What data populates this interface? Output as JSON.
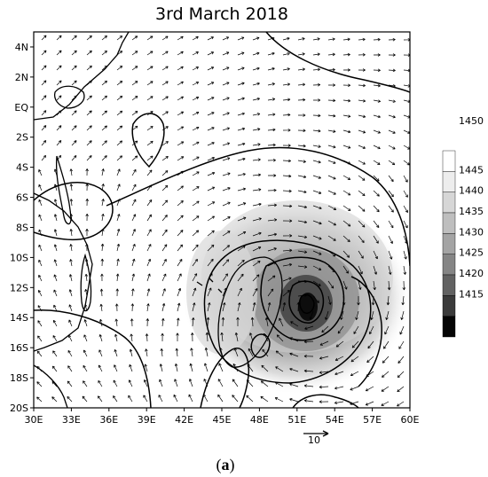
{
  "figure": {
    "title": "3rd March 2018",
    "panel_label_open": "(",
    "panel_label_letter": "a",
    "panel_label_close": ")"
  },
  "map": {
    "lon_range": [
      30,
      60
    ],
    "lat_range": [
      -20,
      5
    ],
    "x_ticks": [
      {
        "lon": 30,
        "label": "30E"
      },
      {
        "lon": 33,
        "label": "33E"
      },
      {
        "lon": 36,
        "label": "36E"
      },
      {
        "lon": 39,
        "label": "39E"
      },
      {
        "lon": 42,
        "label": "42E"
      },
      {
        "lon": 45,
        "label": "45E"
      },
      {
        "lon": 48,
        "label": "48E"
      },
      {
        "lon": 51,
        "label": "51E"
      },
      {
        "lon": 54,
        "label": "54E"
      },
      {
        "lon": 57,
        "label": "57E"
      },
      {
        "lon": 60,
        "label": "60E"
      }
    ],
    "y_ticks": [
      {
        "lat": 4,
        "label": "4N"
      },
      {
        "lat": 2,
        "label": "2N"
      },
      {
        "lat": 0,
        "label": "EQ"
      },
      {
        "lat": -2,
        "label": "2S"
      },
      {
        "lat": -4,
        "label": "4S"
      },
      {
        "lat": -6,
        "label": "6S"
      },
      {
        "lat": -8,
        "label": "8S"
      },
      {
        "lat": -10,
        "label": "10S"
      },
      {
        "lat": -12,
        "label": "12S"
      },
      {
        "lat": -14,
        "label": "14S"
      },
      {
        "lat": -16,
        "label": "16S"
      },
      {
        "lat": -18,
        "label": "18S"
      },
      {
        "lat": -20,
        "label": "20S"
      }
    ],
    "vortex_center": {
      "lon": 51.5,
      "lat": -13.5
    },
    "reference_vector": {
      "label": "10",
      "magnitude": 10
    },
    "shading_color": "#4a4a4a"
  },
  "colorbar": {
    "levels": [
      {
        "label": "1450",
        "color": "#ffffff"
      },
      {
        "label": "1445",
        "color": "#ededed"
      },
      {
        "label": "1440",
        "color": "#d6d6d6"
      },
      {
        "label": "1435",
        "color": "#bebebe"
      },
      {
        "label": "1430",
        "color": "#a4a4a4"
      },
      {
        "label": "1425",
        "color": "#858585"
      },
      {
        "label": "1420",
        "color": "#626262"
      },
      {
        "label": "1415",
        "color": "#3b3b3b"
      },
      {
        "label": "",
        "color": "#050505"
      }
    ]
  }
}
